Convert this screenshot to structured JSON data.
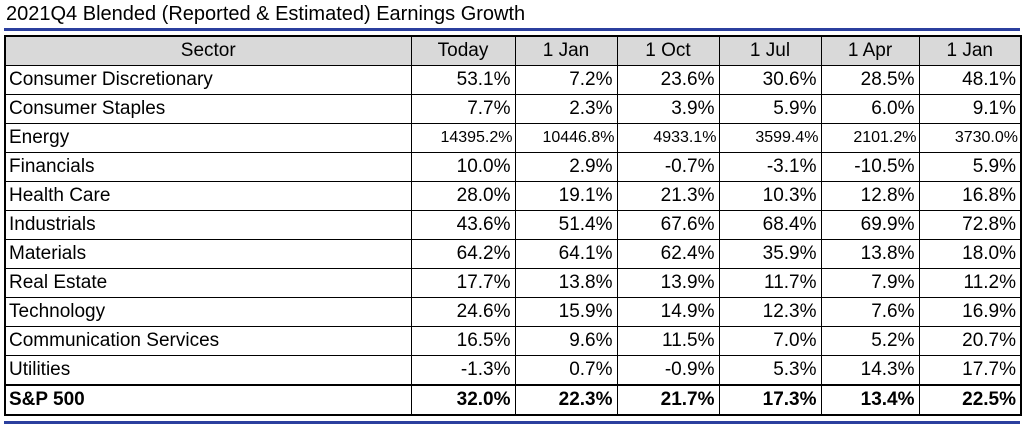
{
  "title": "2021Q4 Blended (Reported & Estimated) Earnings Growth",
  "columns": [
    "Sector",
    "Today",
    "1 Jan",
    "1 Oct",
    "1 Jul",
    "1 Apr",
    "1 Jan"
  ],
  "rows": [
    {
      "sector": "Consumer Discretionary",
      "values": [
        "53.1%",
        "7.2%",
        "23.6%",
        "30.6%",
        "28.5%",
        "48.1%"
      ]
    },
    {
      "sector": "Consumer Staples",
      "values": [
        "7.7%",
        "2.3%",
        "3.9%",
        "5.9%",
        "6.0%",
        "9.1%"
      ]
    },
    {
      "sector": "Energy",
      "values": [
        "14395.2%",
        "10446.8%",
        "4933.1%",
        "3599.4%",
        "2101.2%",
        "3730.0%"
      ]
    },
    {
      "sector": "Financials",
      "values": [
        "10.0%",
        "2.9%",
        "-0.7%",
        "-3.1%",
        "-10.5%",
        "5.9%"
      ]
    },
    {
      "sector": "Health Care",
      "values": [
        "28.0%",
        "19.1%",
        "21.3%",
        "10.3%",
        "12.8%",
        "16.8%"
      ]
    },
    {
      "sector": "Industrials",
      "values": [
        "43.6%",
        "51.4%",
        "67.6%",
        "68.4%",
        "69.9%",
        "72.8%"
      ]
    },
    {
      "sector": "Materials",
      "values": [
        "64.2%",
        "64.1%",
        "62.4%",
        "35.9%",
        "13.8%",
        "18.0%"
      ]
    },
    {
      "sector": "Real Estate",
      "values": [
        "17.7%",
        "13.8%",
        "13.9%",
        "11.7%",
        "7.9%",
        "11.2%"
      ]
    },
    {
      "sector": "Technology",
      "values": [
        "24.6%",
        "15.9%",
        "14.9%",
        "12.3%",
        "7.6%",
        "16.9%"
      ]
    },
    {
      "sector": "Communication Services",
      "values": [
        "16.5%",
        "9.6%",
        "11.5%",
        "7.0%",
        "5.2%",
        "20.7%"
      ]
    },
    {
      "sector": "Utilities",
      "values": [
        "-1.3%",
        "0.7%",
        "-0.9%",
        "5.3%",
        "14.3%",
        "17.7%"
      ]
    }
  ],
  "total": {
    "sector": "S&P 500",
    "values": [
      "32.0%",
      "22.3%",
      "21.7%",
      "17.3%",
      "13.4%",
      "22.5%"
    ]
  },
  "colors": {
    "rule": "#2b3f9e",
    "header_bg": "#d9d9d9"
  }
}
